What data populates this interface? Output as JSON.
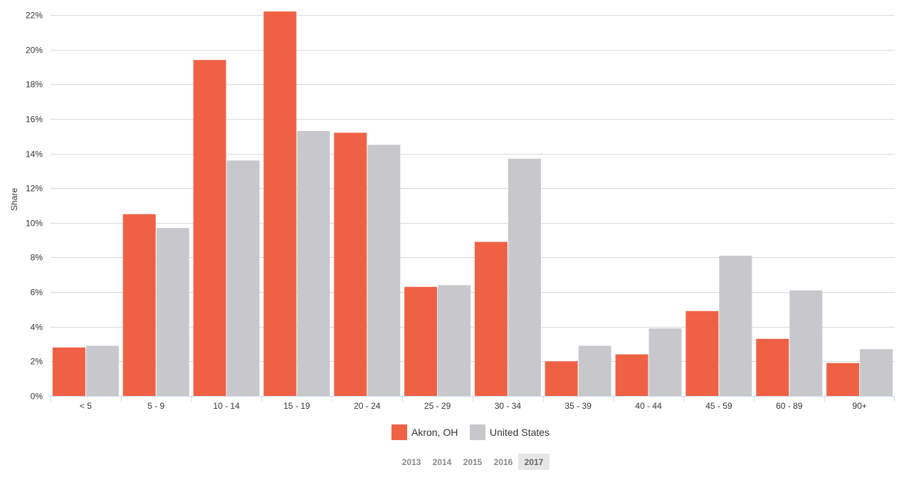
{
  "chart_data": {
    "type": "bar",
    "title": "",
    "xlabel": "",
    "ylabel": "Share",
    "ylim": [
      0,
      22
    ],
    "y_tick_step": 2,
    "y_tick_suffix": "%",
    "grid": true,
    "legend_position": "bottom-center",
    "categories": [
      "< 5",
      "5 - 9",
      "10 - 14",
      "15 - 19",
      "20 - 24",
      "25 - 29",
      "30 - 34",
      "35 - 39",
      "40 - 44",
      "45 - 59",
      "60 - 89",
      "90+"
    ],
    "series": [
      {
        "name": "Akron, OH",
        "color": "#ef6144",
        "values": [
          2.8,
          10.5,
          19.4,
          22.2,
          15.2,
          6.3,
          8.9,
          2.0,
          2.4,
          4.9,
          3.3,
          1.9
        ]
      },
      {
        "name": "United States",
        "color": "#c8c8cc",
        "values": [
          2.9,
          9.7,
          13.6,
          15.3,
          14.5,
          6.4,
          13.7,
          2.9,
          3.9,
          8.1,
          6.1,
          2.7
        ]
      }
    ]
  },
  "year_selector": {
    "years": [
      "2013",
      "2014",
      "2015",
      "2016",
      "2017"
    ],
    "selected": "2017"
  },
  "colors": {
    "grid": "#d9d9d9",
    "axis": "#ccd6eb",
    "selected_year_bg": "#e6e6e6"
  }
}
